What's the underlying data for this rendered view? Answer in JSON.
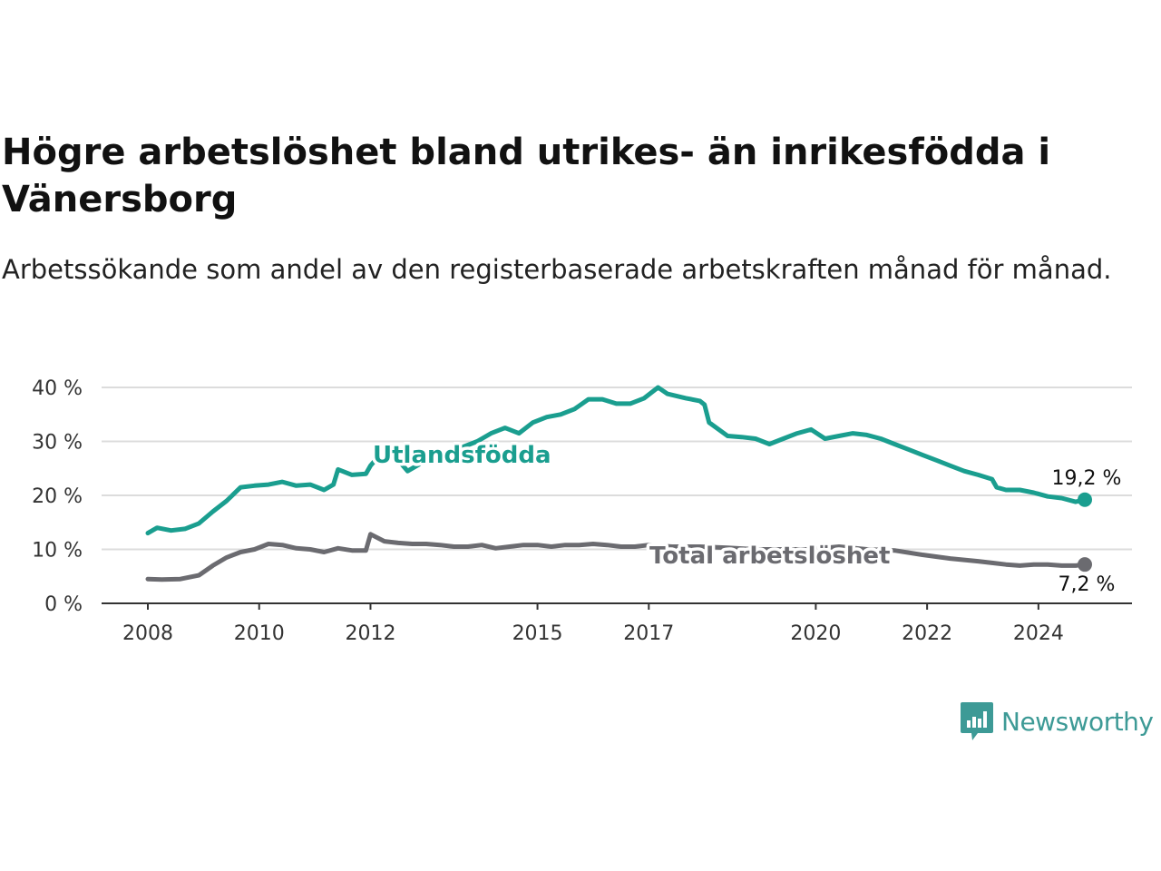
{
  "header": {
    "title": "Högre arbetslöshet bland utrikes- än inrikesfödda i Vänersborg",
    "subtitle": "Arbetssökande som andel av den registerbaserade arbetskraften månad för månad."
  },
  "brand": {
    "name": "Newsworthy",
    "color": "#3d9a96",
    "icon": "newsworthy-chart-bubble-icon"
  },
  "chart_data": {
    "type": "line",
    "x_range": [
      "2008-01",
      "2024-11"
    ],
    "ylim": [
      0,
      40
    ],
    "yticks": [
      0,
      10,
      20,
      30,
      40
    ],
    "ytick_labels": [
      "0 %",
      "10 %",
      "20 %",
      "30 %",
      "40 %"
    ],
    "xticks": [
      "2008-01",
      "2010-01",
      "2012-01",
      "2015-01",
      "2017-01",
      "2020-01",
      "2022-01",
      "2024-01"
    ],
    "xtick_labels": [
      "2008",
      "2010",
      "2012",
      "2015",
      "2017",
      "2020",
      "2022",
      "2024"
    ],
    "grid": "horizontal",
    "series": [
      {
        "name": "Utlandsfödda",
        "color": "#1a9e8f",
        "end_label": "19,2 %",
        "points": [
          [
            "2008-01",
            13.0
          ],
          [
            "2008-03",
            14.0
          ],
          [
            "2008-06",
            13.5
          ],
          [
            "2008-09",
            13.8
          ],
          [
            "2008-12",
            14.8
          ],
          [
            "2009-03",
            17.0
          ],
          [
            "2009-06",
            19.0
          ],
          [
            "2009-09",
            21.5
          ],
          [
            "2009-12",
            21.8
          ],
          [
            "2010-03",
            22.0
          ],
          [
            "2010-06",
            22.5
          ],
          [
            "2010-09",
            21.8
          ],
          [
            "2010-12",
            22.0
          ],
          [
            "2011-03",
            21.0
          ],
          [
            "2011-05",
            22.0
          ],
          [
            "2011-06",
            24.8
          ],
          [
            "2011-09",
            23.8
          ],
          [
            "2011-12",
            24.0
          ],
          [
            "2012-01",
            25.5
          ],
          [
            "2012-04",
            28.5
          ],
          [
            "2012-06",
            27.5
          ],
          [
            "2012-09",
            24.5
          ],
          [
            "2012-12",
            26.0
          ],
          [
            "2013-03",
            27.5
          ],
          [
            "2013-06",
            28.0
          ],
          [
            "2013-09",
            29.0
          ],
          [
            "2013-12",
            30.0
          ],
          [
            "2014-03",
            31.5
          ],
          [
            "2014-06",
            32.5
          ],
          [
            "2014-09",
            31.5
          ],
          [
            "2014-12",
            33.5
          ],
          [
            "2015-03",
            34.5
          ],
          [
            "2015-06",
            35.0
          ],
          [
            "2015-09",
            36.0
          ],
          [
            "2015-12",
            37.8
          ],
          [
            "2016-03",
            37.8
          ],
          [
            "2016-06",
            37.0
          ],
          [
            "2016-09",
            37.0
          ],
          [
            "2016-12",
            38.0
          ],
          [
            "2017-03",
            40.0
          ],
          [
            "2017-05",
            38.8
          ],
          [
            "2017-09",
            38.0
          ],
          [
            "2017-12",
            37.5
          ],
          [
            "2018-01",
            36.8
          ],
          [
            "2018-02",
            33.5
          ],
          [
            "2018-06",
            31.0
          ],
          [
            "2018-09",
            30.8
          ],
          [
            "2018-12",
            30.5
          ],
          [
            "2019-03",
            29.5
          ],
          [
            "2019-06",
            30.5
          ],
          [
            "2019-09",
            31.5
          ],
          [
            "2019-12",
            32.2
          ],
          [
            "2020-03",
            30.5
          ],
          [
            "2020-06",
            31.0
          ],
          [
            "2020-09",
            31.5
          ],
          [
            "2020-12",
            31.2
          ],
          [
            "2021-03",
            30.5
          ],
          [
            "2021-06",
            29.5
          ],
          [
            "2021-09",
            28.5
          ],
          [
            "2021-12",
            27.5
          ],
          [
            "2022-03",
            26.5
          ],
          [
            "2022-06",
            25.5
          ],
          [
            "2022-09",
            24.5
          ],
          [
            "2022-12",
            23.8
          ],
          [
            "2023-03",
            23.0
          ],
          [
            "2023-04",
            21.5
          ],
          [
            "2023-06",
            21.0
          ],
          [
            "2023-09",
            21.0
          ],
          [
            "2023-12",
            20.5
          ],
          [
            "2024-03",
            19.8
          ],
          [
            "2024-06",
            19.5
          ],
          [
            "2024-09",
            18.8
          ],
          [
            "2024-11",
            19.2
          ]
        ]
      },
      {
        "name": "Total arbetslöshet",
        "color": "#6b6b70",
        "end_label": "7,2 %",
        "points": [
          [
            "2008-01",
            4.5
          ],
          [
            "2008-04",
            4.4
          ],
          [
            "2008-08",
            4.5
          ],
          [
            "2008-12",
            5.2
          ],
          [
            "2009-03",
            7.0
          ],
          [
            "2009-06",
            8.5
          ],
          [
            "2009-09",
            9.5
          ],
          [
            "2009-12",
            10.0
          ],
          [
            "2010-03",
            11.0
          ],
          [
            "2010-06",
            10.8
          ],
          [
            "2010-09",
            10.2
          ],
          [
            "2010-12",
            10.0
          ],
          [
            "2011-03",
            9.5
          ],
          [
            "2011-06",
            10.2
          ],
          [
            "2011-09",
            9.8
          ],
          [
            "2011-12",
            9.8
          ],
          [
            "2012-01",
            12.8
          ],
          [
            "2012-04",
            11.5
          ],
          [
            "2012-07",
            11.2
          ],
          [
            "2012-10",
            11.0
          ],
          [
            "2013-01",
            11.0
          ],
          [
            "2013-04",
            10.8
          ],
          [
            "2013-07",
            10.5
          ],
          [
            "2013-10",
            10.5
          ],
          [
            "2014-01",
            10.8
          ],
          [
            "2014-04",
            10.2
          ],
          [
            "2014-07",
            10.5
          ],
          [
            "2014-10",
            10.8
          ],
          [
            "2015-01",
            10.8
          ],
          [
            "2015-04",
            10.5
          ],
          [
            "2015-07",
            10.8
          ],
          [
            "2015-10",
            10.8
          ],
          [
            "2016-01",
            11.0
          ],
          [
            "2016-04",
            10.8
          ],
          [
            "2016-07",
            10.5
          ],
          [
            "2016-10",
            10.5
          ],
          [
            "2017-01",
            10.8
          ],
          [
            "2017-06",
            10.5
          ],
          [
            "2017-12",
            10.5
          ],
          [
            "2018-06",
            10.3
          ],
          [
            "2018-12",
            10.0
          ],
          [
            "2019-06",
            10.0
          ],
          [
            "2019-12",
            10.0
          ],
          [
            "2020-06",
            10.5
          ],
          [
            "2020-12",
            10.0
          ],
          [
            "2021-06",
            9.8
          ],
          [
            "2021-12",
            9.0
          ],
          [
            "2022-06",
            8.3
          ],
          [
            "2022-12",
            7.8
          ],
          [
            "2023-03",
            7.5
          ],
          [
            "2023-06",
            7.2
          ],
          [
            "2023-09",
            7.0
          ],
          [
            "2023-12",
            7.2
          ],
          [
            "2024-03",
            7.2
          ],
          [
            "2024-06",
            7.0
          ],
          [
            "2024-09",
            7.0
          ],
          [
            "2024-11",
            7.2
          ]
        ]
      }
    ]
  }
}
